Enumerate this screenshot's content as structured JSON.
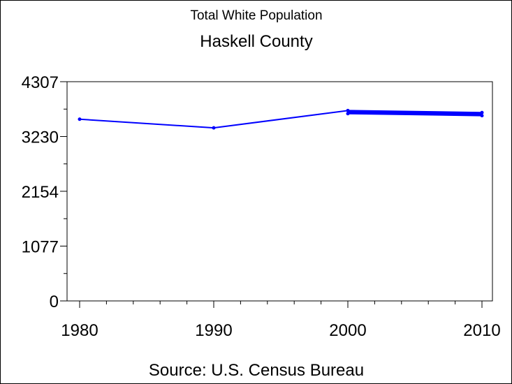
{
  "chart_data": {
    "type": "line",
    "title": "Total White Population",
    "subtitle": "Haskell County",
    "source": "Source: U.S. Census Bureau",
    "xlabel": "",
    "ylabel": "",
    "x_ticks": [
      "1980",
      "1990",
      "2000",
      "2010"
    ],
    "y_ticks": [
      "0",
      "1077",
      "2154",
      "3230",
      "4307"
    ],
    "xlim": [
      1980,
      2010
    ],
    "ylim": [
      0,
      4307
    ],
    "grid": false,
    "legend": "none",
    "series": [
      {
        "values": [
          {
            "x": 1980,
            "y": 3570
          },
          {
            "x": 1990,
            "y": 3400
          },
          {
            "x": 2000,
            "y": 3740
          },
          {
            "x": 2010,
            "y": 3700
          }
        ]
      },
      {
        "values": [
          {
            "x": 2000,
            "y": 3680
          },
          {
            "x": 2010,
            "y": 3640
          }
        ]
      }
    ],
    "colors": {
      "line": "#0000ff",
      "axis": "#000000",
      "text": "#000000"
    }
  }
}
